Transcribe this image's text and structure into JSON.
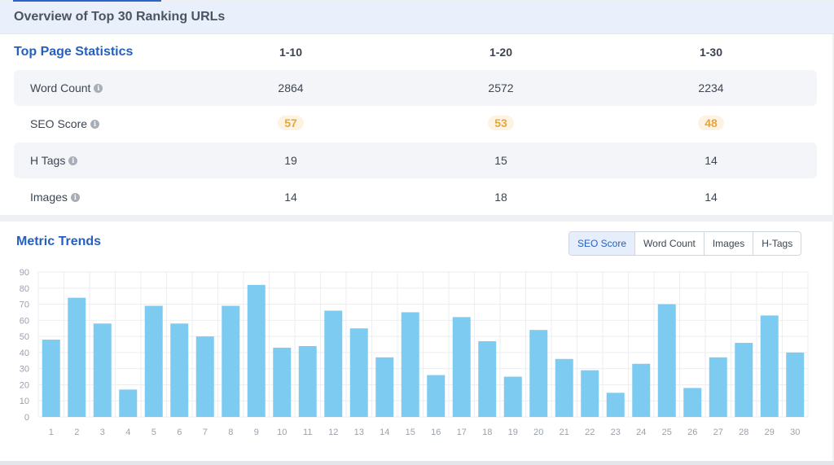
{
  "overview": {
    "title": "Overview of Top 30 Ranking URLs"
  },
  "stats": {
    "title": "Top Page Statistics",
    "columns": [
      "1-10",
      "1-20",
      "1-30"
    ],
    "rows": [
      {
        "label": "Word Count",
        "values": [
          "2864",
          "2572",
          "2234"
        ]
      },
      {
        "label": "SEO Score",
        "values": [
          "57",
          "53",
          "48"
        ]
      },
      {
        "label": "H Tags",
        "values": [
          "19",
          "15",
          "14"
        ]
      },
      {
        "label": "Images",
        "values": [
          "14",
          "18",
          "14"
        ]
      }
    ],
    "info_icon": "info-icon",
    "score_color": "#e7a63c"
  },
  "trends": {
    "title": "Metric Trends",
    "tabs": [
      "SEO Score",
      "Word Count",
      "Images",
      "H-Tags"
    ],
    "active_tab": "SEO Score"
  },
  "chart_data": {
    "type": "bar",
    "title": "",
    "xlabel": "",
    "ylabel": "",
    "ylim": [
      0,
      90
    ],
    "yticks": [
      0,
      10,
      20,
      30,
      40,
      50,
      60,
      70,
      80,
      90
    ],
    "grid": true,
    "bar_color": "#7ecbf2",
    "categories": [
      "1",
      "2",
      "3",
      "4",
      "5",
      "6",
      "7",
      "8",
      "9",
      "10",
      "11",
      "12",
      "13",
      "14",
      "15",
      "16",
      "17",
      "18",
      "19",
      "20",
      "21",
      "22",
      "23",
      "24",
      "25",
      "26",
      "27",
      "28",
      "29",
      "30"
    ],
    "values": [
      48,
      74,
      58,
      17,
      69,
      58,
      50,
      69,
      82,
      43,
      44,
      66,
      55,
      37,
      65,
      26,
      62,
      47,
      25,
      54,
      36,
      29,
      15,
      33,
      70,
      18,
      37,
      46,
      63,
      40
    ]
  }
}
